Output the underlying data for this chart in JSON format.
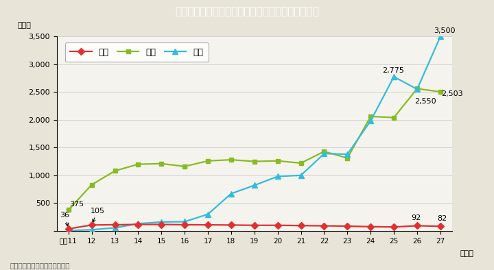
{
  "title": "Ｉ－５－２図　夫から妻への犯罪の検挙件数の推移",
  "ylabel": "（件）",
  "xlabel_note": "（年）",
  "note": "（備考）警察庁資料より作成。",
  "legend_satsujin": "殺人",
  "legend_shogai": "傷害",
  "legend_boko": "暴行",
  "years": [
    11,
    12,
    13,
    14,
    15,
    16,
    17,
    18,
    19,
    20,
    21,
    22,
    23,
    24,
    25,
    26,
    27
  ],
  "satsujin": [
    36,
    105,
    110,
    115,
    115,
    110,
    108,
    105,
    100,
    100,
    95,
    90,
    85,
    75,
    70,
    92,
    82
  ],
  "shogai": [
    375,
    830,
    1080,
    1200,
    1210,
    1160,
    1260,
    1280,
    1250,
    1260,
    1220,
    1430,
    1310,
    2060,
    2040,
    2560,
    2503
  ],
  "boko": [
    5,
    20,
    55,
    130,
    160,
    165,
    300,
    670,
    820,
    980,
    1000,
    1390,
    1380,
    1980,
    2775,
    2550,
    3500
  ],
  "satsujin_color": "#e03030",
  "shogai_color": "#88bb22",
  "boko_color": "#33bbdd",
  "bg_color": "#e8e4d8",
  "plot_bg_color": "#f5f3ed",
  "title_bg_color": "#3bbccc",
  "title_text_color": "#ffffff",
  "ylim": [
    0,
    3500
  ],
  "yticks": [
    0,
    500,
    1000,
    1500,
    2000,
    2500,
    3000,
    3500
  ]
}
